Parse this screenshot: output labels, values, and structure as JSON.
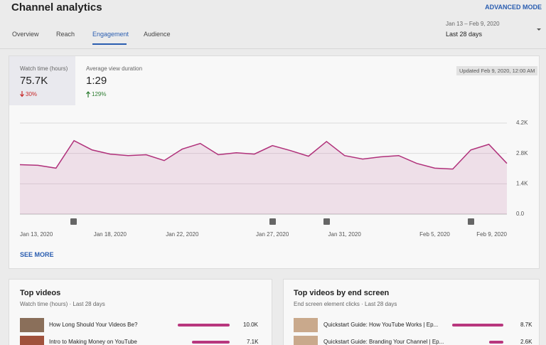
{
  "header": {
    "title": "Channel analytics",
    "action": "ADVANCED MODE"
  },
  "tabs": [
    "Overview",
    "Reach",
    "Engagement",
    "Audience"
  ],
  "date_range": {
    "range": "Jan 13 – Feb 9, 2020",
    "label": "Last 28 days"
  },
  "metrics": [
    {
      "label": "Watch time (hours)",
      "value": "75.7K",
      "change": "30%"
    },
    {
      "label": "Average view duration",
      "value": "1:29",
      "change": "129%"
    }
  ],
  "updated": "Updated Feb 9, 2020, 12:00 AM",
  "see_more": "SEE MORE",
  "chart_data": {
    "type": "line",
    "categories": [
      "Jan 13, 2020",
      null,
      null,
      null,
      null,
      "Jan 18, 2020",
      null,
      null,
      null,
      "Jan 22, 2020",
      null,
      null,
      null,
      null,
      "Jan 27, 2020",
      null,
      null,
      null,
      "Jan 31, 2020",
      null,
      null,
      null,
      null,
      "Feb 5, 2020",
      null,
      null,
      null,
      "Feb 9, 2020"
    ],
    "series": [
      {
        "color": "#b0307a",
        "values": [
          2280,
          2250,
          2120,
          3390,
          2960,
          2770,
          2700,
          2740,
          2470,
          3000,
          3260,
          2740,
          2830,
          2770,
          3160,
          2930,
          2670,
          3350,
          2700,
          2540,
          2640,
          2700,
          2340,
          2120,
          2080,
          2960,
          3220,
          2340
        ]
      }
    ],
    "ylim": [
      0,
      4200
    ],
    "yticks": [
      {
        "value": 0,
        "label": "0.0"
      },
      {
        "value": 1400,
        "label": "1.4K"
      },
      {
        "value": 2800,
        "label": "2.8K"
      },
      {
        "value": 4200,
        "label": "4.2K"
      }
    ],
    "grid": true
  },
  "top_videos": {
    "title": "Top videos",
    "subtitle": "Watch time (hours) · Last 28 days",
    "rows": [
      {
        "title": "How Long Should Your Videos Be?",
        "value": "10.0K"
      },
      {
        "title": "Intro to Making Money on YouTube",
        "value": "7.1K"
      }
    ]
  },
  "top_end_screen": {
    "title": "Top videos by end screen",
    "subtitle": "End screen element clicks · Last 28 days",
    "rows": [
      {
        "title": "Quickstart Guide: How YouTube Works | Ep...",
        "value": "8.7K"
      },
      {
        "title": "Quickstart Guide: Branding Your Channel | Ep...",
        "value": "2.6K"
      }
    ]
  }
}
